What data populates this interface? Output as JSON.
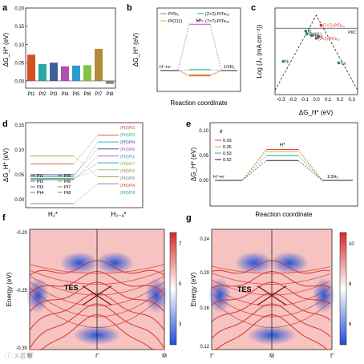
{
  "panel_labels": {
    "a": "a",
    "b": "b",
    "c": "c",
    "d": "d",
    "e": "e",
    "f": "f",
    "g": "g"
  },
  "colors": {
    "bars": [
      "#d4521f",
      "#2aa7a1",
      "#3f5f9a",
      "#b04fb4",
      "#2e9bd0",
      "#84c341",
      "#b08c3a",
      "#808080"
    ],
    "pt_te2": "#c455c9",
    "pt111": "#d6b62b",
    "pt2x2": "#1fa3a3",
    "pt7x7": "#e04040",
    "volcano": "#1a8a5b",
    "heat_low": "#1f4fd6",
    "heat_mid": "#ffffff",
    "heat_high": "#d62a2a"
  },
  "chart_data": [
    {
      "type": "bar",
      "id": "a",
      "ylabel": "ΔG_H* (eV)",
      "categories": [
        "Pt1",
        "Pt2",
        "Pt3",
        "Pt4",
        "Pt5",
        "Pt6",
        "Pt7",
        "Pt8"
      ],
      "values": [
        0.072,
        0.046,
        0.05,
        0.04,
        0.042,
        0.043,
        0.088,
        -0.008
      ],
      "ylim": [
        -0.02,
        0.2
      ],
      "yticks": [
        "0.00",
        "0.05",
        "0.10",
        "0.15",
        "0.20"
      ]
    },
    {
      "type": "line",
      "id": "b",
      "ylabel": "ΔG_H* (eV)",
      "xlabel": "Reaction coordinate",
      "series": [
        {
          "name": "PtTe₂",
          "value": 1.05
        },
        {
          "name": "Pt(111)",
          "value": -0.09
        },
        {
          "name": "(2×2)-PtTe₂ₓ",
          "value": 0.02
        },
        {
          "name": "(7×7)-PtTe₂ₓ",
          "value": -0.12
        }
      ],
      "annotations": [
        "H*",
        "H⁺+e⁻",
        "1/2H₂"
      ]
    },
    {
      "type": "scatter",
      "id": "c",
      "ylabel": "Log (J₀ (mA cm⁻²))",
      "xlabel": "ΔG_H* (eV)",
      "xticks": [
        "-0.3",
        "-0.2",
        "-0.1",
        "0.0",
        "0.1",
        "0.2",
        "0.3"
      ],
      "points": [
        {
          "name": "Ni",
          "x": -0.28,
          "y": -5.2
        },
        {
          "name": "Pt",
          "x": -0.09,
          "y": -3.1
        },
        {
          "name": "Pt(111)",
          "x": -0.08,
          "y": -3.3
        },
        {
          "name": "Rh",
          "x": -0.04,
          "y": -3.4
        },
        {
          "name": "Ir",
          "x": 0.02,
          "y": -3.5
        },
        {
          "name": "(2×2)-PtTe₂ₓ",
          "x": 0.0,
          "y": -3.6
        },
        {
          "name": "(7×7)-PtTe₂ₓ",
          "x": 0.04,
          "y": -2.7
        },
        {
          "name": "Cu",
          "x": 0.19,
          "y": -5.3
        }
      ],
      "reference": "Pt/C"
    },
    {
      "type": "line",
      "id": "d",
      "ylabel": "ΔG_H* (eV)",
      "xlabel_left": "H₂*",
      "xlabel_right": "H₂₋ₐ*",
      "yticks": [
        "0.00",
        "0.05",
        "0.10",
        "0.15"
      ],
      "left_levels": [
        0.072,
        0.046,
        0.05,
        0.04,
        0.042,
        0.043,
        0.088,
        -0.008
      ],
      "legend": [
        "Pt1",
        "Pt2",
        "Pt3",
        "Pt4",
        "Pt5",
        "Pt6",
        "Pt7",
        "Pt8"
      ],
      "right_labels": [
        "(Pt2)Pt3",
        "(Pt4)Pt3",
        "(Pt5)Pt4",
        "(Pt3)Pt6",
        "(Pt2)Pt1",
        "(Pt8)Pt7",
        "(Pt8)Pt2",
        "(Pt6)Pt5",
        "(Pt5)Pt4",
        "(Pt8)Pt8"
      ]
    },
    {
      "type": "line",
      "id": "e",
      "ylabel": "ΔG_H* (eV)",
      "xlabel": "Reaction coordinate",
      "legend_title": "θ",
      "series": [
        {
          "name": "0.03",
          "value": 0.062
        },
        {
          "name": "0.35",
          "value": 0.058
        },
        {
          "name": "0.53",
          "value": 0.05
        },
        {
          "name": "0.62",
          "value": 0.04
        }
      ],
      "yticks": [
        "0.00",
        "0.05",
        "0.10"
      ],
      "annotations": [
        "H*",
        "H⁺+e⁻",
        "1/2H₂"
      ]
    },
    {
      "type": "heatmap",
      "id": "f",
      "ylabel": "Energy (eV)",
      "yticks": [
        "-0.20",
        "-0.25",
        "-0.30"
      ],
      "xticks": [
        "M̄",
        "Γ̄",
        "M̄"
      ],
      "colorbar": [
        "7",
        "5",
        "3"
      ],
      "annotation": "TES"
    },
    {
      "type": "heatmap",
      "id": "g",
      "ylabel": "Energy (eV)",
      "yticks": [
        "0.24",
        "0.20",
        "0.16",
        "0.12"
      ],
      "xticks": [
        "Γ̄",
        "M̄",
        "Γ̄"
      ],
      "colorbar": [
        "10",
        "8",
        "6"
      ],
      "annotation": "TES"
    }
  ],
  "watermark": "ⓘ X者学"
}
